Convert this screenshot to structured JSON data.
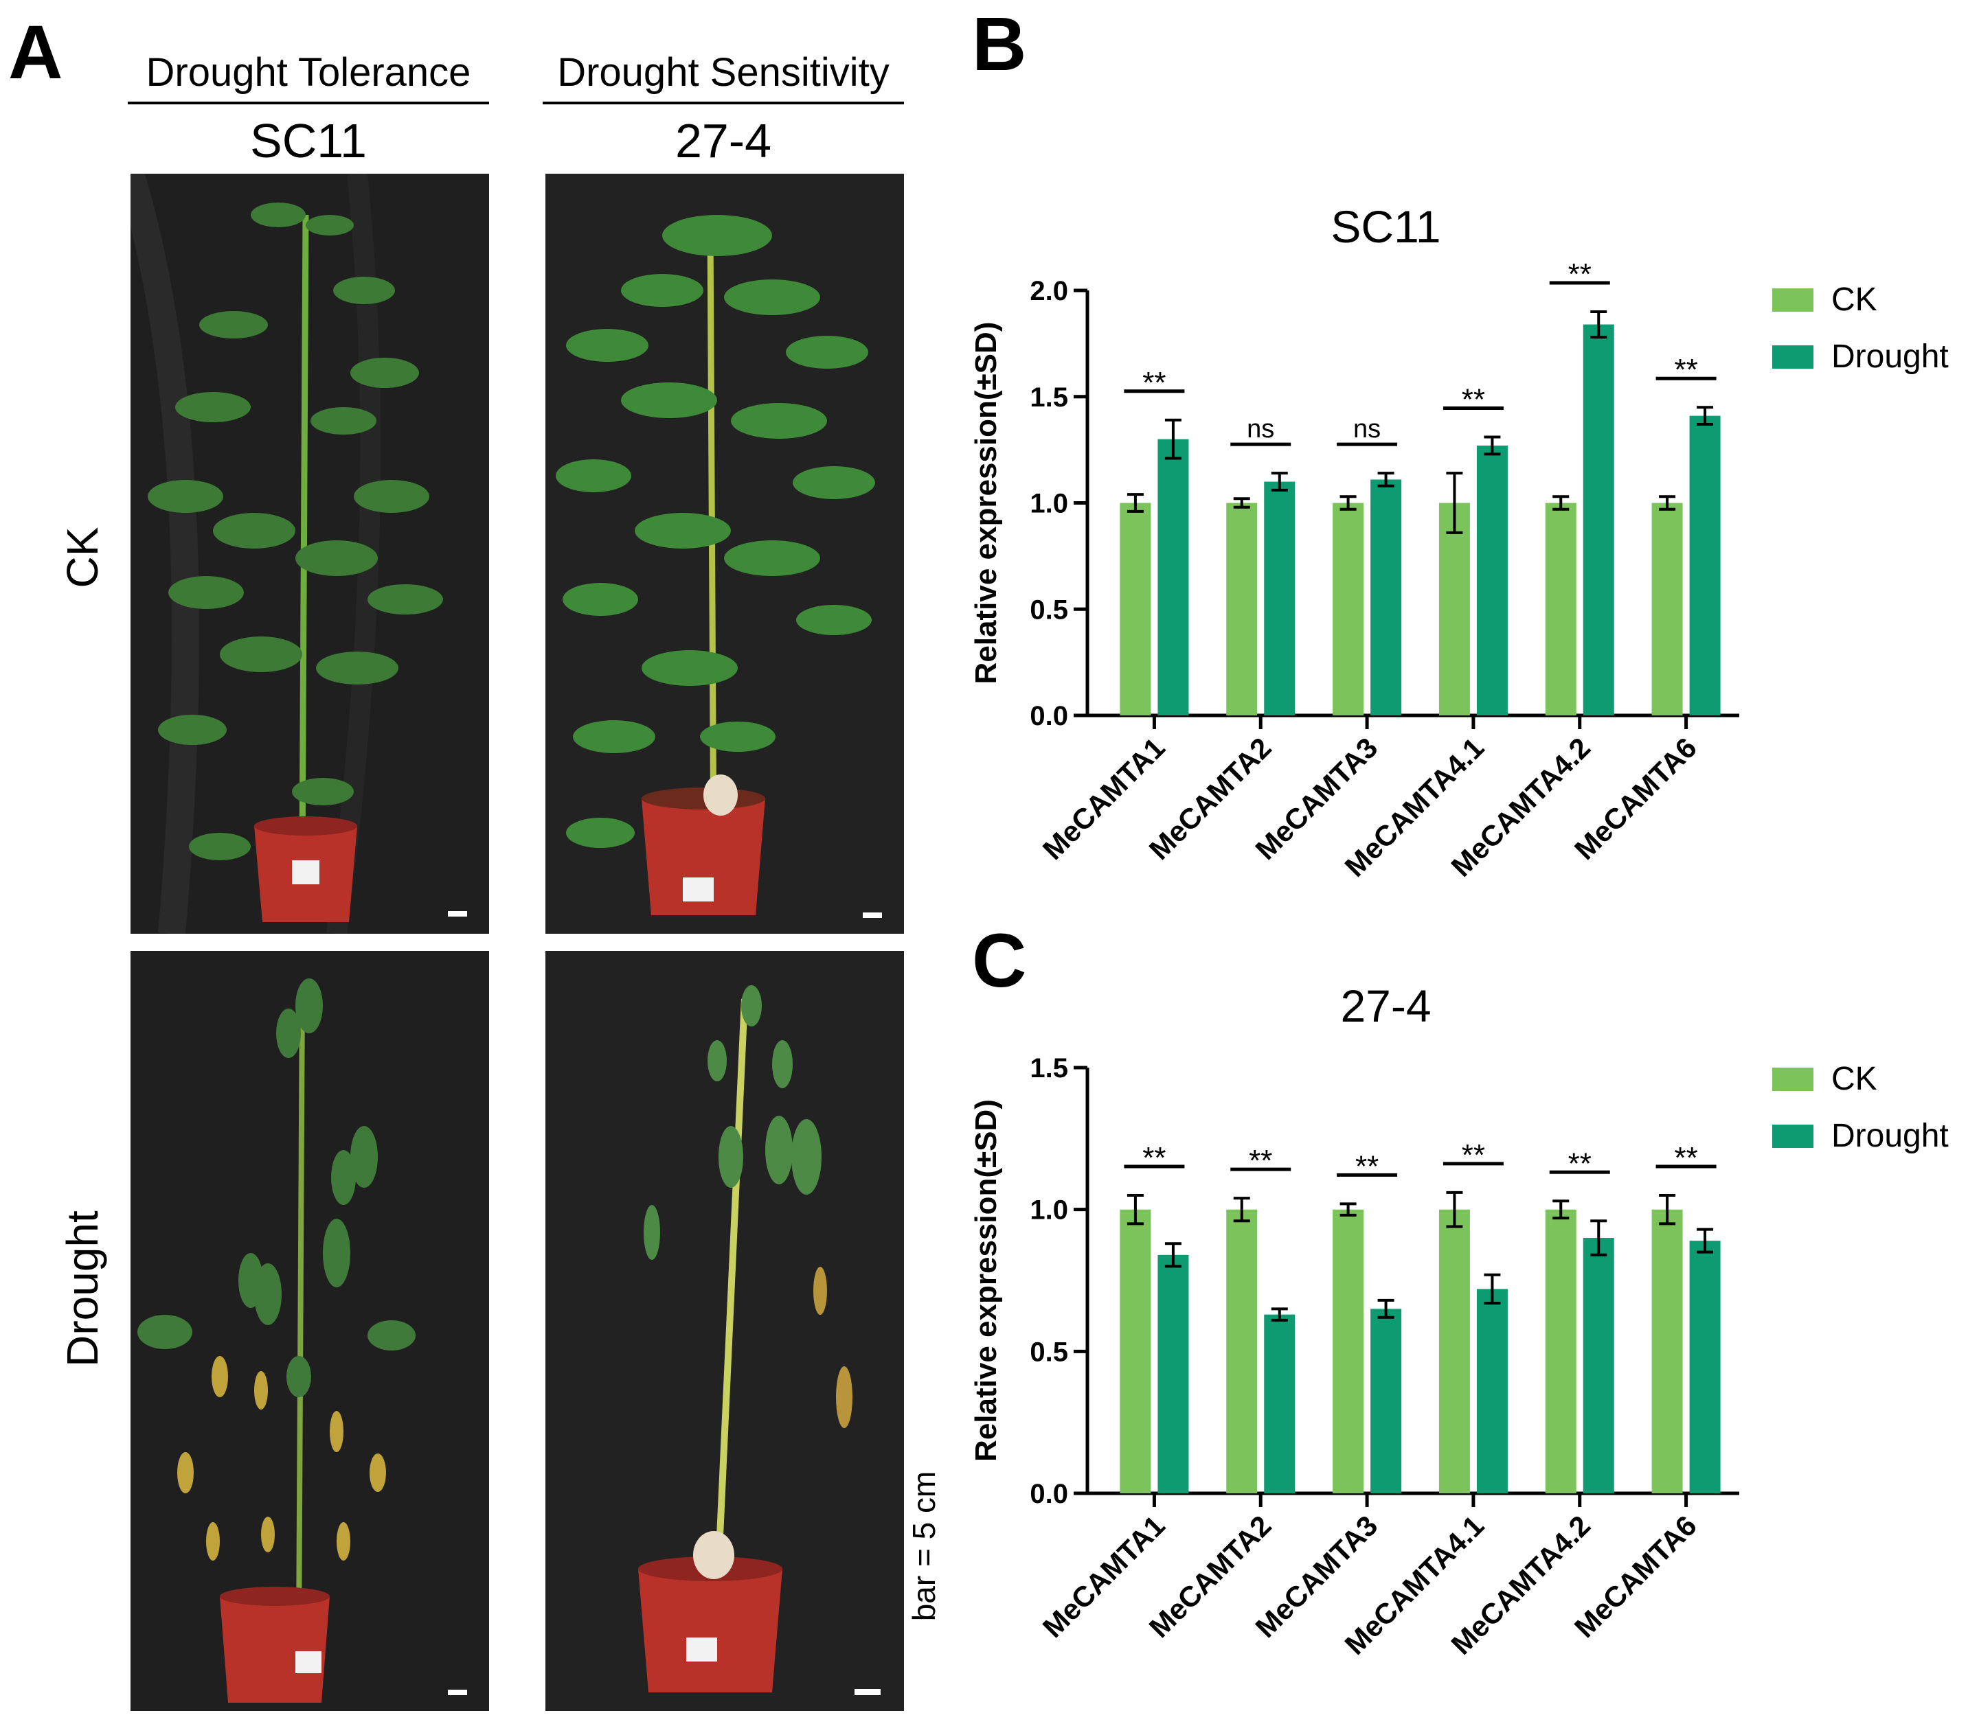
{
  "panel_a": {
    "letter": "A",
    "groups": [
      {
        "heading": "Drought Tolerance",
        "cultivar": "SC11"
      },
      {
        "heading": "Drought Sensitivity",
        "cultivar": "27-4"
      }
    ],
    "rows": [
      "CK",
      "Drought"
    ],
    "scale_bar": "bar = 5 cm"
  },
  "panel_b": {
    "letter": "B"
  },
  "panel_c": {
    "letter": "C"
  },
  "chart_data": [
    {
      "type": "bar",
      "title": "SC11",
      "ylabel": "Relative expression(±SD)",
      "xlabel": "",
      "ylim": [
        0,
        2.0
      ],
      "yticks": [
        "0.0",
        "0.5",
        "1.0",
        "1.5",
        "2.0"
      ],
      "categories": [
        "MeCAMTA1",
        "MeCAMTA2",
        "MeCAMTA3",
        "MeCAMTA4.1",
        "MeCAMTA4.2",
        "MeCAMTA6"
      ],
      "series": [
        {
          "name": "CK",
          "color": "#7dc35b",
          "values": [
            1.0,
            1.0,
            1.0,
            1.0,
            1.0,
            1.0
          ],
          "errors": [
            0.04,
            0.02,
            0.03,
            0.14,
            0.03,
            0.03
          ]
        },
        {
          "name": "Drought",
          "color": "#0e9b72",
          "values": [
            1.3,
            1.1,
            1.11,
            1.27,
            1.84,
            1.41
          ],
          "errors": [
            0.09,
            0.04,
            0.03,
            0.04,
            0.06,
            0.04
          ]
        }
      ],
      "significance": [
        "**",
        "ns",
        "ns",
        "**",
        "**",
        "**"
      ],
      "legend_position": "right"
    },
    {
      "type": "bar",
      "title": "27-4",
      "ylabel": "Relative expression(±SD)",
      "xlabel": "",
      "ylim": [
        0,
        1.5
      ],
      "yticks": [
        "0.0",
        "0.5",
        "1.0",
        "1.5"
      ],
      "categories": [
        "MeCAMTA1",
        "MeCAMTA2",
        "MeCAMTA3",
        "MeCAMTA4.1",
        "MeCAMTA4.2",
        "MeCAMTA6"
      ],
      "series": [
        {
          "name": "CK",
          "color": "#7dc35b",
          "values": [
            1.0,
            1.0,
            1.0,
            1.0,
            1.0,
            1.0
          ],
          "errors": [
            0.05,
            0.04,
            0.02,
            0.06,
            0.03,
            0.05
          ]
        },
        {
          "name": "Drought",
          "color": "#0e9b72",
          "values": [
            0.84,
            0.63,
            0.65,
            0.72,
            0.9,
            0.89
          ],
          "errors": [
            0.04,
            0.02,
            0.03,
            0.05,
            0.06,
            0.04
          ]
        }
      ],
      "significance": [
        "**",
        "**",
        "**",
        "**",
        "**",
        "**"
      ],
      "legend_position": "right"
    }
  ]
}
